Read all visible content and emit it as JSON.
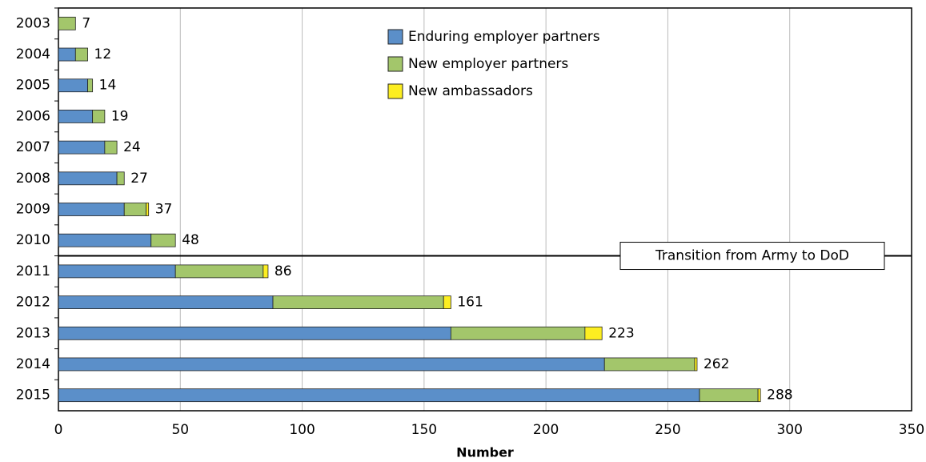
{
  "chart_data": {
    "type": "stacked_barh",
    "xlabel": "Number",
    "categories": [
      "2003",
      "2004",
      "2005",
      "2006",
      "2007",
      "2008",
      "2009",
      "2010",
      "2011",
      "2012",
      "2013",
      "2014",
      "2015"
    ],
    "series": [
      {
        "name": "Enduring employer partners",
        "color": "#5b8fc9",
        "values": [
          0,
          7,
          12,
          14,
          19,
          24,
          27,
          38,
          48,
          88,
          161,
          224,
          263
        ]
      },
      {
        "name": "New employer partners",
        "color": "#a3c66b",
        "values": [
          7,
          5,
          2,
          5,
          5,
          3,
          9,
          10,
          36,
          70,
          55,
          37,
          24
        ]
      },
      {
        "name": "New ambassadors",
        "color": "#fcee21",
        "values": [
          0,
          0,
          0,
          0,
          0,
          0,
          1,
          0,
          2,
          3,
          7,
          1,
          1
        ]
      }
    ],
    "totals": [
      7,
      12,
      14,
      19,
      24,
      27,
      37,
      48,
      86,
      161,
      223,
      262,
      288
    ],
    "annotation": "Transition from Army to DoD",
    "xlim": [
      0,
      350
    ],
    "xticks": [
      0,
      50,
      100,
      150,
      200,
      250,
      300,
      350
    ],
    "grid": true
  }
}
